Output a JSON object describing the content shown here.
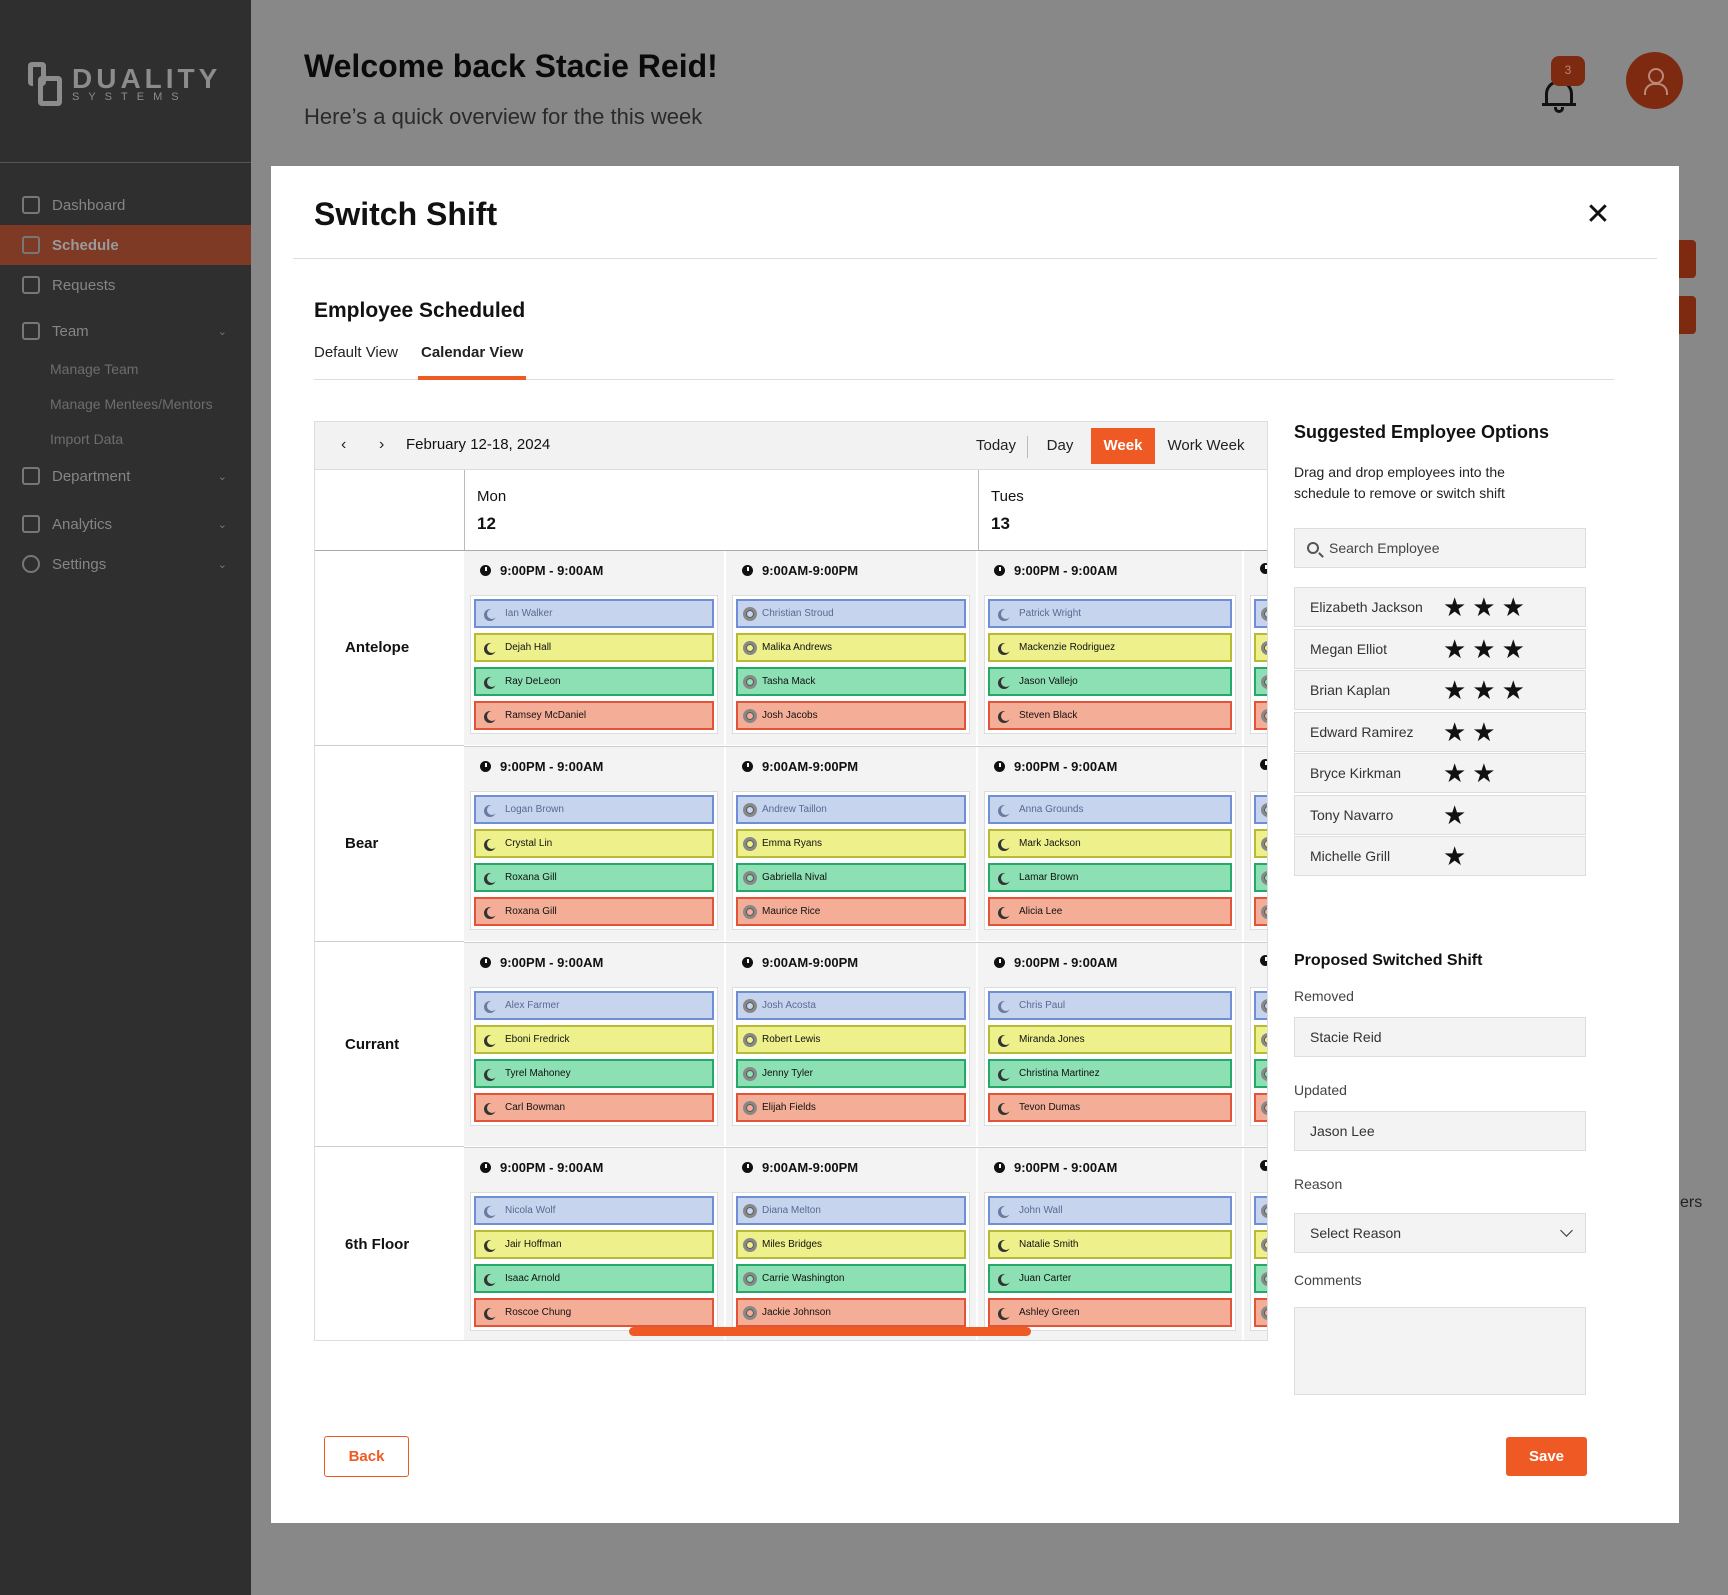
{
  "brand": {
    "name": "DUALITY",
    "sub": "SYSTEMS"
  },
  "sidebar": {
    "items": [
      {
        "label": "Dashboard",
        "icon": "home-icon"
      },
      {
        "label": "Schedule",
        "icon": "schedule-icon"
      },
      {
        "label": "Requests",
        "icon": "clipboard-icon"
      },
      {
        "label": "Team",
        "icon": "team-icon"
      },
      {
        "label": "Department",
        "icon": "building-icon"
      },
      {
        "label": "Analytics",
        "icon": "chart-icon"
      },
      {
        "label": "Settings",
        "icon": "gear-icon"
      }
    ],
    "team_sub": [
      "Manage Team",
      "Manage Mentees/Mentors",
      "Import Data"
    ],
    "active": "Schedule",
    "active_color": "#7e3a24"
  },
  "header": {
    "welcome": "Welcome back Stacie Reid!",
    "subtitle": "Here’s a quick overview for the this week",
    "notifications": "3"
  },
  "modal": {
    "title": "Switch Shift",
    "section_title": "Employee Scheduled",
    "tabs": [
      "Default View",
      "Calendar View"
    ],
    "active_tab": "Calendar View",
    "accent": "#ef5a24"
  },
  "calendar": {
    "range": "February 12-18, 2024",
    "views": [
      "Today",
      "Day",
      "Week",
      "Work Week"
    ],
    "active_view": "Week",
    "days": [
      {
        "name": "Mon",
        "date": "12"
      },
      {
        "name": "Tues",
        "date": "13"
      }
    ],
    "columns": [
      {
        "time": "9:00PM - 9:00AM",
        "shift": "night"
      },
      {
        "time": "9:00AM-9:00PM",
        "shift": "day"
      },
      {
        "time": "9:00PM - 9:00AM",
        "shift": "night"
      }
    ],
    "rows": [
      {
        "location": "Antelope",
        "cells": [
          [
            "Ian Walker",
            "Dejah Hall",
            "Ray DeLeon",
            "Ramsey McDaniel"
          ],
          [
            "Christian Stroud",
            "Malika Andrews",
            "Tasha Mack",
            "Josh Jacobs"
          ],
          [
            "Patrick Wright",
            "Mackenzie Rodriguez",
            "Jason Vallejo",
            "Steven Black"
          ]
        ]
      },
      {
        "location": "Bear",
        "cells": [
          [
            "Logan Brown",
            "Crystal Lin",
            "Roxana Gill",
            "Roxana Gill"
          ],
          [
            "Andrew Taillon",
            "Emma Ryans",
            "Gabriella Nival",
            "Maurice Rice"
          ],
          [
            "Anna Grounds",
            "Mark Jackson",
            "Lamar Brown",
            "Alicia Lee"
          ]
        ]
      },
      {
        "location": "Currant",
        "cells": [
          [
            "Alex Farmer",
            "Eboni Fredrick",
            "Tyrel Mahoney",
            "Carl Bowman"
          ],
          [
            "Josh Acosta",
            "Robert Lewis",
            "Jenny Tyler",
            "Elijah Fields"
          ],
          [
            "Chris Paul",
            "Miranda Jones",
            "Christina Martinez",
            "Tevon Dumas"
          ]
        ]
      },
      {
        "location": "6th Floor",
        "cells": [
          [
            "Nicola Wolf",
            "Jair Hoffman",
            "Isaac Arnold",
            "Roscoe Chung"
          ],
          [
            "Diana Melton",
            "Miles Bridges",
            "Carrie Washington",
            "Jackie Johnson"
          ],
          [
            "John Wall",
            "Natalie Smith",
            "Juan Carter",
            "Ashley Green"
          ]
        ]
      }
    ]
  },
  "suggested": {
    "title": "Suggested Employee Options",
    "description": "Drag and drop employees into the schedule to remove or switch shift",
    "search_placeholder": "Search Employee",
    "employees": [
      {
        "name": "Elizabeth Jackson",
        "rating": 3
      },
      {
        "name": "Megan Elliot",
        "rating": 3
      },
      {
        "name": "Brian Kaplan",
        "rating": 3
      },
      {
        "name": "Edward Ramirez",
        "rating": 2
      },
      {
        "name": "Bryce Kirkman",
        "rating": 2
      },
      {
        "name": "Tony Navarro",
        "rating": 1
      },
      {
        "name": "Michelle Grill",
        "rating": 1
      }
    ]
  },
  "proposed": {
    "title": "Proposed Switched Shift",
    "removed_label": "Removed",
    "removed_value": "Stacie Reid",
    "updated_label": "Updated",
    "updated_value": "Jason Lee",
    "reason_label": "Reason",
    "reason_value": "Select Reason",
    "comments_label": "Comments"
  },
  "buttons": {
    "back": "Back",
    "save": "Save"
  },
  "background": {
    "fragment": "ers"
  }
}
